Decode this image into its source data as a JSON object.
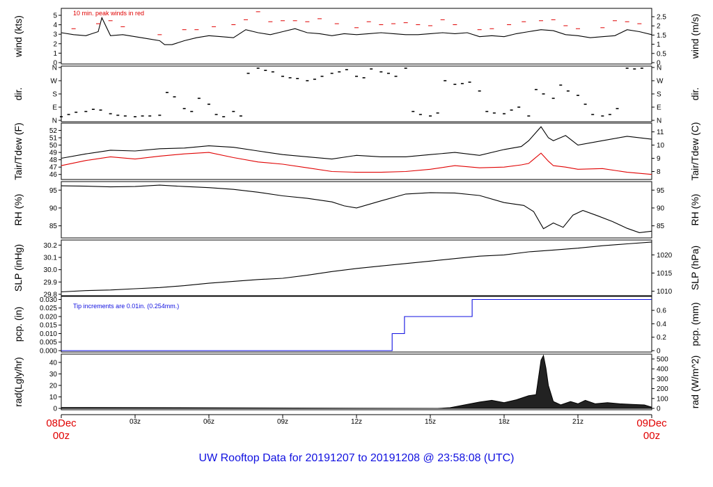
{
  "title": "UW Rooftop Data for 20191207  to  20191208 @ 23:58:08  (UTC)",
  "colors": {
    "primary": "#000000",
    "peak": "#e00000",
    "dewpoint": "#e00000",
    "precip": "#1010e0",
    "title": "#1010e0"
  },
  "x_axis": {
    "ticks": [
      "03z",
      "06z",
      "09z",
      "12z",
      "15z",
      "18z",
      "21z"
    ],
    "start": [
      "08Dec",
      "00z"
    ],
    "end": [
      "09Dec",
      "00z"
    ],
    "range_hours": [
      0,
      24
    ]
  },
  "chart_data": [
    {
      "id": "wind",
      "type": "line",
      "ylabel_left": "wind (kts)",
      "ylabel_right": "wind (m/s)",
      "ylim": [
        0,
        5.3
      ],
      "yticks_left": [
        "0",
        "1",
        "2",
        "3",
        "4",
        "5"
      ],
      "yticks_right": [
        "0",
        "0.5",
        "1",
        "1.5",
        "2",
        "2.5"
      ],
      "annotation": "10 min. peak winds in red",
      "series": [
        {
          "kind": "sustained_wind",
          "x": [
            0,
            0.5,
            1,
            1.5,
            1.65,
            2,
            2.5,
            3,
            3.5,
            4,
            4.2,
            4.5,
            5,
            5.5,
            6,
            6.5,
            7,
            7.5,
            8,
            8.5,
            9,
            9.5,
            10,
            10.5,
            11,
            11.5,
            12,
            12.5,
            13,
            13.5,
            14,
            14.5,
            15,
            15.5,
            16,
            16.5,
            17,
            17.5,
            18,
            18.5,
            19,
            19.5,
            20,
            20.5,
            21,
            21.5,
            22,
            22.5,
            23,
            23.5,
            24
          ],
          "y": [
            3.0,
            2.8,
            2.7,
            3.1,
            4.5,
            2.7,
            2.8,
            2.6,
            2.4,
            2.2,
            1.8,
            1.8,
            2.2,
            2.5,
            2.7,
            2.6,
            2.5,
            3.3,
            3.0,
            2.8,
            3.1,
            3.4,
            3.0,
            2.9,
            2.7,
            2.9,
            2.8,
            2.9,
            3.0,
            2.9,
            2.8,
            2.8,
            2.9,
            3.0,
            2.9,
            3.0,
            2.6,
            2.7,
            2.6,
            2.9,
            3.1,
            3.3,
            3.2,
            2.8,
            2.7,
            2.5,
            2.6,
            2.7,
            3.3,
            3.1,
            2.8
          ]
        },
        {
          "kind": "peak_10min",
          "x": [
            0.5,
            1.5,
            2,
            2.5,
            4,
            5,
            5.5,
            6.2,
            7,
            7.5,
            8,
            8.5,
            9,
            9.5,
            10,
            10.5,
            11.2,
            12,
            12.5,
            13,
            13.5,
            14,
            14.5,
            15,
            15.5,
            16,
            17,
            17.5,
            18.2,
            18.8,
            19.5,
            20,
            20.5,
            21,
            22,
            22.5,
            23,
            23.5
          ],
          "y": [
            3.4,
            3.9,
            4.2,
            3.6,
            2.8,
            3.3,
            3.3,
            3.6,
            3.8,
            4.3,
            5.1,
            4.1,
            4.2,
            4.2,
            4.1,
            4.4,
            3.9,
            3.5,
            4.1,
            3.8,
            3.9,
            4.0,
            3.8,
            3.7,
            4.3,
            3.8,
            3.3,
            3.4,
            3.8,
            4.1,
            4.2,
            4.3,
            3.7,
            3.4,
            3.5,
            4.2,
            4.1,
            3.9
          ]
        }
      ]
    },
    {
      "id": "direction",
      "type": "scatter",
      "ylabel_left": "dir.",
      "ylabel_right": "dir.",
      "yticks_left": [
        "N",
        "E",
        "S",
        "W",
        "N"
      ],
      "yticks_right": [
        "N",
        "E",
        "S",
        "W",
        "N"
      ],
      "ylim": [
        0,
        360
      ],
      "x": [
        0,
        0.3,
        0.6,
        1,
        1.3,
        1.6,
        2,
        2.3,
        2.6,
        3,
        3.3,
        3.6,
        4,
        4.3,
        4.6,
        5,
        5.3,
        5.6,
        6,
        6.3,
        6.6,
        7,
        7.3,
        7.6,
        8,
        8.3,
        8.6,
        9,
        9.3,
        9.6,
        10,
        10.3,
        10.6,
        11,
        11.3,
        11.6,
        12,
        12.3,
        12.6,
        13,
        13.3,
        13.6,
        14,
        14.3,
        14.6,
        15,
        15.3,
        15.6,
        16,
        16.3,
        16.6,
        17,
        17.3,
        17.6,
        18,
        18.3,
        18.6,
        19,
        19.3,
        19.6,
        20,
        20.3,
        20.6,
        21,
        21.3,
        21.6,
        22,
        22.3,
        22.6,
        23,
        23.3,
        23.6
      ],
      "y": [
        25,
        40,
        55,
        60,
        75,
        70,
        45,
        35,
        30,
        25,
        30,
        30,
        35,
        190,
        160,
        80,
        60,
        150,
        110,
        40,
        25,
        60,
        30,
        320,
        355,
        340,
        330,
        300,
        290,
        285,
        270,
        280,
        300,
        320,
        330,
        345,
        300,
        290,
        350,
        330,
        320,
        300,
        355,
        60,
        40,
        30,
        50,
        270,
        245,
        250,
        260,
        200,
        60,
        50,
        45,
        70,
        90,
        30,
        210,
        180,
        150,
        240,
        200,
        170,
        110,
        40,
        30,
        40,
        80,
        355,
        350,
        355
      ]
    },
    {
      "id": "temperature",
      "type": "line",
      "ylabel_left": "Tair/Tdew (F)",
      "ylabel_right": "Tair/Tdew (C)",
      "ylim": [
        45.5,
        52.8
      ],
      "yticks_left": [
        "46",
        "47",
        "48",
        "49",
        "50",
        "51",
        "52"
      ],
      "yticks_right": [
        "8",
        "9",
        "10",
        "11"
      ],
      "series": [
        {
          "kind": "air_temperature",
          "x": [
            0,
            1,
            2,
            3,
            4,
            5,
            6,
            7,
            8,
            9,
            10,
            11,
            12,
            13,
            14,
            15,
            16,
            17,
            18,
            18.7,
            19,
            19.5,
            19.8,
            20,
            20.5,
            21,
            22,
            23,
            24
          ],
          "y": [
            48.2,
            48.8,
            49.3,
            49.2,
            49.5,
            49.6,
            49.9,
            49.7,
            49.2,
            48.7,
            48.4,
            48.1,
            48.6,
            48.4,
            48.4,
            48.7,
            49.0,
            48.6,
            49.4,
            49.8,
            50.6,
            52.5,
            51.0,
            50.6,
            51.3,
            50.0,
            50.6,
            51.2,
            50.8
          ]
        },
        {
          "kind": "dew_point",
          "x": [
            0,
            1,
            2,
            3,
            4,
            5,
            6,
            7,
            8,
            9,
            10,
            11,
            12,
            13,
            14,
            15,
            16,
            17,
            18,
            18.7,
            19,
            19.5,
            19.8,
            20,
            20.5,
            21,
            22,
            23,
            24
          ],
          "y": [
            47.2,
            47.9,
            48.4,
            48.1,
            48.5,
            48.8,
            49.0,
            48.3,
            47.7,
            47.4,
            46.9,
            46.4,
            46.3,
            46.3,
            46.4,
            46.7,
            47.2,
            46.9,
            47.0,
            47.3,
            47.5,
            48.9,
            47.8,
            47.2,
            47.0,
            46.7,
            46.8,
            46.3,
            46.0
          ]
        }
      ]
    },
    {
      "id": "humidity",
      "type": "line",
      "ylabel_left": "RH (%)",
      "ylabel_right": "RH (%)",
      "ylim": [
        82,
        97
      ],
      "yticks_left": [
        "85",
        "90",
        "95"
      ],
      "yticks_right": [
        "85",
        "90",
        "95"
      ],
      "x": [
        0,
        1,
        2,
        3,
        4,
        5,
        6,
        7,
        8,
        9,
        10,
        11,
        11.5,
        12,
        13,
        14,
        15,
        16,
        17,
        18,
        18.8,
        19.2,
        19.6,
        20,
        20.4,
        20.8,
        21.2,
        21.8,
        22.4,
        23,
        23.5,
        24
      ],
      "y": [
        96.2,
        96.1,
        95.9,
        96.0,
        96.4,
        96.0,
        95.7,
        95.2,
        94.4,
        93.4,
        92.7,
        91.7,
        90.6,
        90.0,
        92.0,
        93.9,
        94.3,
        94.2,
        93.5,
        91.5,
        90.7,
        89.0,
        84.2,
        85.8,
        84.6,
        88.0,
        89.3,
        87.8,
        86.2,
        84.3,
        83.1,
        83.5
      ]
    },
    {
      "id": "pressure",
      "type": "line",
      "ylabel_left": "SLP (inHg)",
      "ylabel_right": "SLP (hPa)",
      "ylim": [
        29.8,
        30.23
      ],
      "yticks_left": [
        "29.8",
        "29.9",
        "30.0",
        "30.1",
        "30.2"
      ],
      "yticks_right": [
        "1010",
        "1015",
        "1020"
      ],
      "x": [
        0,
        1,
        2,
        3,
        4,
        5,
        6,
        7,
        8,
        9,
        10,
        11,
        12,
        13,
        14,
        15,
        16,
        17,
        18,
        19,
        20,
        21,
        22,
        23,
        24
      ],
      "y": [
        29.82,
        29.83,
        29.835,
        29.845,
        29.855,
        29.87,
        29.89,
        29.905,
        29.92,
        29.93,
        29.955,
        29.985,
        30.01,
        30.03,
        30.05,
        30.07,
        30.09,
        30.11,
        30.12,
        30.145,
        30.16,
        30.175,
        30.195,
        30.21,
        30.225
      ]
    },
    {
      "id": "precipitation",
      "type": "line",
      "ylabel_left": "pcp. (in)",
      "ylabel_right": "pcp. (mm)",
      "ylim": [
        0,
        0.031
      ],
      "yticks_left": [
        "0.000",
        "0.005",
        "0.010",
        "0.015",
        "0.020",
        "0.025",
        "0.030"
      ],
      "yticks_right": [
        "0",
        "0.2",
        "0.4",
        "0.6"
      ],
      "annotation": "Tip increments are 0.01in. (0.254mm.)",
      "x": [
        0,
        13.45,
        13.45,
        13.95,
        13.95,
        16.7,
        16.7,
        24
      ],
      "y": [
        0,
        0,
        0.01,
        0.01,
        0.02,
        0.02,
        0.03,
        0.03
      ]
    },
    {
      "id": "radiation",
      "type": "area",
      "ylabel_left": "rad(Lgly/hr)",
      "ylabel_right": "rad (W/m^2)",
      "ylim": [
        0,
        46
      ],
      "yticks_left": [
        "0",
        "10",
        "20",
        "30",
        "40"
      ],
      "yticks_right": [
        "0",
        "100",
        "200",
        "300",
        "400",
        "500"
      ],
      "x": [
        0,
        0.7,
        15.3,
        15.8,
        16.5,
        17,
        17.5,
        18,
        18.5,
        19,
        19.3,
        19.5,
        19.6,
        19.7,
        19.8,
        20,
        20.3,
        20.7,
        21,
        21.3,
        21.7,
        22.2,
        22.7,
        23.2,
        23.7,
        24
      ],
      "y": [
        0.8,
        0.8,
        0,
        0.6,
        3.5,
        5.5,
        7,
        5,
        7.5,
        11,
        12,
        42,
        46,
        35,
        20,
        6,
        3,
        6,
        4,
        7,
        4,
        5,
        4,
        3.5,
        3,
        1
      ]
    }
  ]
}
